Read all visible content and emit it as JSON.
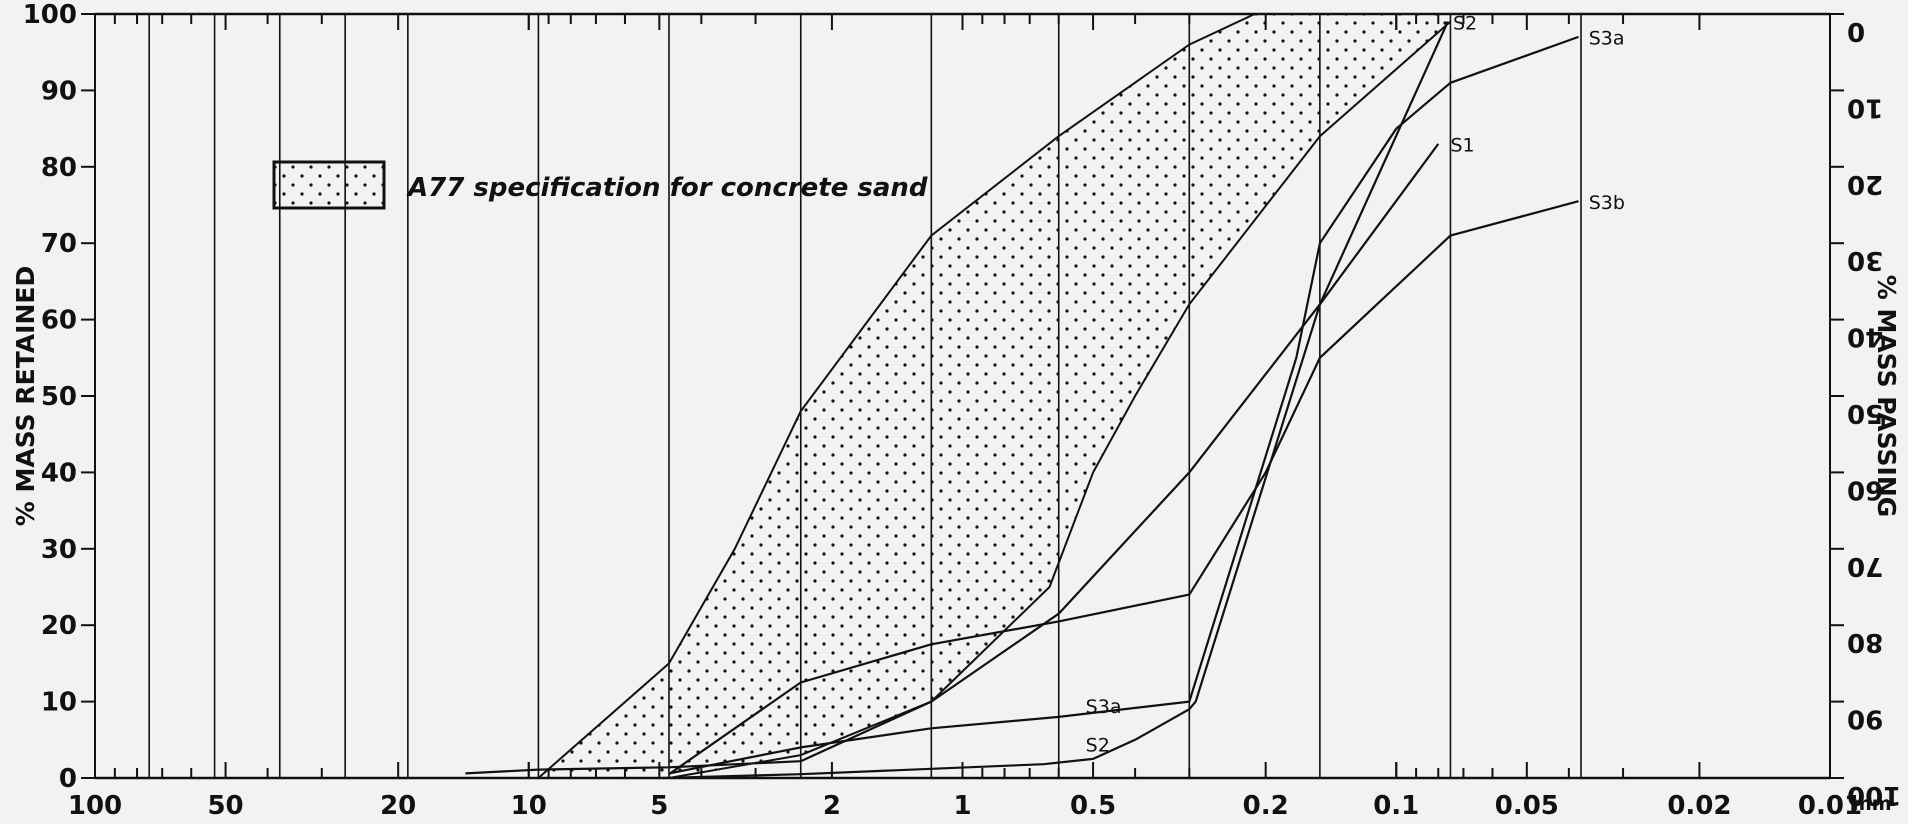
{
  "chart_data": {
    "type": "line",
    "title": "",
    "xlabel": "",
    "x_unit": "mm",
    "ylabel_left": "% MASS RETAINED",
    "ylabel_right": "% MASS PASSING",
    "xscale": "log",
    "xlim": [
      100,
      0.01
    ],
    "ylim": [
      0,
      100
    ],
    "x_ticks": [
      {
        "value": 100,
        "label": "100"
      },
      {
        "value": 50,
        "label": "50"
      },
      {
        "value": 20,
        "label": "20"
      },
      {
        "value": 10,
        "label": "10"
      },
      {
        "value": 5,
        "label": "5"
      },
      {
        "value": 2,
        "label": "2"
      },
      {
        "value": 1,
        "label": "1"
      },
      {
        "value": 0.5,
        "label": "0.5"
      },
      {
        "value": 0.2,
        "label": "0.2"
      },
      {
        "value": 0.1,
        "label": "0.1"
      },
      {
        "value": 0.05,
        "label": "0.05"
      },
      {
        "value": 0.02,
        "label": "0.02"
      },
      {
        "value": 0.01,
        "label": "0.01"
      }
    ],
    "sieve_lines": [
      75,
      53,
      37.5,
      26.5,
      19,
      9.5,
      4.75,
      2.36,
      1.18,
      0.6,
      0.3,
      0.15,
      0.075,
      0.0375
    ],
    "y_ticks_left": [
      "0",
      "10",
      "20",
      "30",
      "40",
      "50",
      "60",
      "70",
      "80",
      "90",
      "100"
    ],
    "y_ticks_right": [
      "100",
      "90",
      "80",
      "70",
      "60",
      "50",
      "40",
      "30",
      "20",
      "10",
      "0"
    ],
    "legend": {
      "label": "A77 specification for concrete sand",
      "position": "top-left"
    },
    "specification_band": {
      "name": "A77 specification for concrete sand",
      "upper": {
        "x": [
          9.5,
          4.75,
          3.35,
          2.36,
          1.18,
          0.6,
          0.3,
          0.212,
          0.075
        ],
        "y": [
          0,
          15,
          30,
          48,
          71,
          84,
          96,
          100,
          100
        ]
      },
      "lower": {
        "x": [
          4.75,
          2.36,
          1.18,
          0.63,
          0.5,
          0.4,
          0.3,
          0.15,
          0.075
        ],
        "y": [
          0,
          3,
          10,
          25,
          40,
          50,
          62,
          84,
          99
        ]
      }
    },
    "series": [
      {
        "name": "S1",
        "x": [
          14,
          9.5,
          4.75,
          2.36,
          1.18,
          0.6,
          0.3,
          0.15,
          0.08
        ],
        "y": [
          0.6,
          1.1,
          1.4,
          2.2,
          10,
          21.5,
          40,
          62,
          83
        ]
      },
      {
        "name": "S2",
        "x": [
          4.9,
          2.36,
          1.18,
          0.65,
          0.5,
          0.4,
          0.3,
          0.29,
          0.15,
          0.076
        ],
        "y": [
          0,
          0.5,
          1.2,
          1.8,
          2.5,
          5,
          9,
          10,
          62,
          99
        ]
      },
      {
        "name": "S3a",
        "x": [
          4.75,
          2.36,
          1.18,
          0.6,
          0.3,
          0.17,
          0.15,
          0.1,
          0.075,
          0.038
        ],
        "y": [
          0.6,
          4,
          6.5,
          8,
          10,
          55,
          70,
          85,
          91,
          97
        ]
      },
      {
        "name": "S3b",
        "x": [
          4.75,
          2.36,
          1.18,
          0.6,
          0.3,
          0.2,
          0.15,
          0.075,
          0.038
        ],
        "y": [
          0.5,
          12.5,
          17.5,
          20.5,
          24,
          40,
          55,
          71,
          75.5
        ]
      }
    ],
    "grid": false
  }
}
